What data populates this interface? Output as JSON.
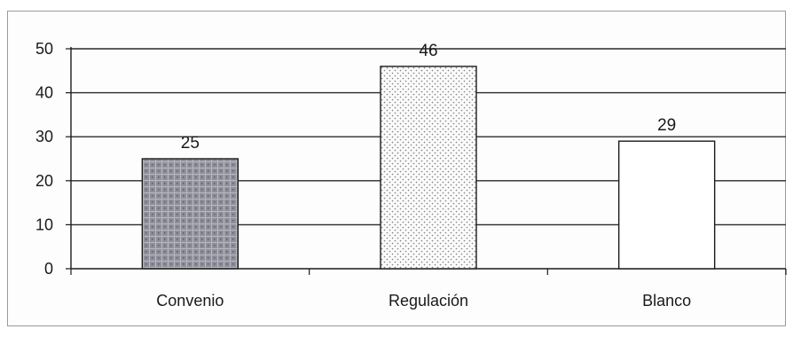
{
  "chart_data": {
    "type": "bar",
    "categories": [
      "Convenio",
      "Regulación",
      "Blanco"
    ],
    "values": [
      25,
      46,
      29
    ],
    "data_labels": [
      "25",
      "46",
      "29"
    ],
    "title": "",
    "xlabel": "",
    "ylabel": "",
    "ylim": [
      0,
      50
    ],
    "yticks": [
      0,
      10,
      20,
      30,
      40,
      50
    ],
    "ytick_labels": [
      "0",
      "10",
      "20",
      "30",
      "40",
      "50"
    ],
    "grid": true,
    "legend": "none",
    "bar_fills": [
      "dark-dotted-grid",
      "light-dotted",
      "solid-white"
    ],
    "colors": {
      "gridline": "#2a2a2a",
      "bar_outline": "#1a1a1a",
      "bar1_fill": "#8f8f9a",
      "bar2_fill": "#f7f7f7",
      "bar3_fill": "#ffffff"
    }
  }
}
